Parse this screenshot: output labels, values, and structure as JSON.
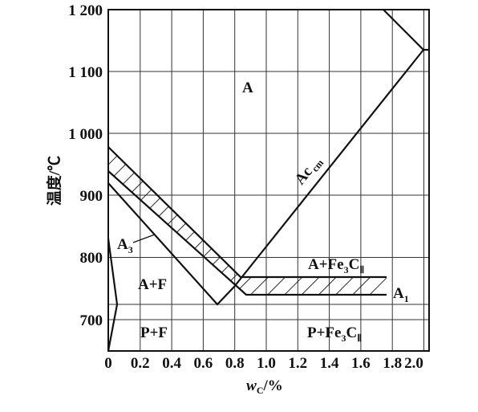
{
  "figure": {
    "y_axis_label": "温度/℃",
    "x_axis_label_main": "w",
    "x_axis_label_sub": "C",
    "x_axis_label_unit": "/%",
    "y_ticks": [
      {
        "value": 700,
        "label": "700"
      },
      {
        "value": 800,
        "label": "800"
      },
      {
        "value": 900,
        "label": "900"
      },
      {
        "value": 1000,
        "label": "1 000"
      },
      {
        "value": 1100,
        "label": "1 100"
      },
      {
        "value": 1200,
        "label": "1 200"
      }
    ],
    "x_ticks": [
      {
        "value": 0,
        "label": "0"
      },
      {
        "value": 0.2,
        "label": "0.2"
      },
      {
        "value": 0.4,
        "label": "0.4"
      },
      {
        "value": 0.6,
        "label": "0.6"
      },
      {
        "value": 0.8,
        "label": "0.8"
      },
      {
        "value": 1.0,
        "label": "1.0"
      },
      {
        "value": 1.2,
        "label": "1.2"
      },
      {
        "value": 1.4,
        "label": "1.4"
      },
      {
        "value": 1.6,
        "label": "1.6"
      },
      {
        "value": 1.8,
        "label": "1.8"
      },
      {
        "value": 2.0,
        "label": "2.0"
      }
    ],
    "x_range": [
      0,
      2.07
    ],
    "y_range": [
      652,
      1200
    ],
    "regions": {
      "austenite": "A",
      "a_plus_f": "A+F",
      "p_plus_f": "P+F",
      "a_plus_cementite": "A+Fe",
      "p_plus_cementite": "P+Fe",
      "fe_sub": "3",
      "c_letter": "C",
      "c_sub": "Ⅱ"
    },
    "curve_labels": {
      "a3_main": "A",
      "a3_sub": "3",
      "a1_main": "A",
      "a1_sub": "1",
      "accm_main": "Ac",
      "accm_sub": "cm"
    }
  }
}
